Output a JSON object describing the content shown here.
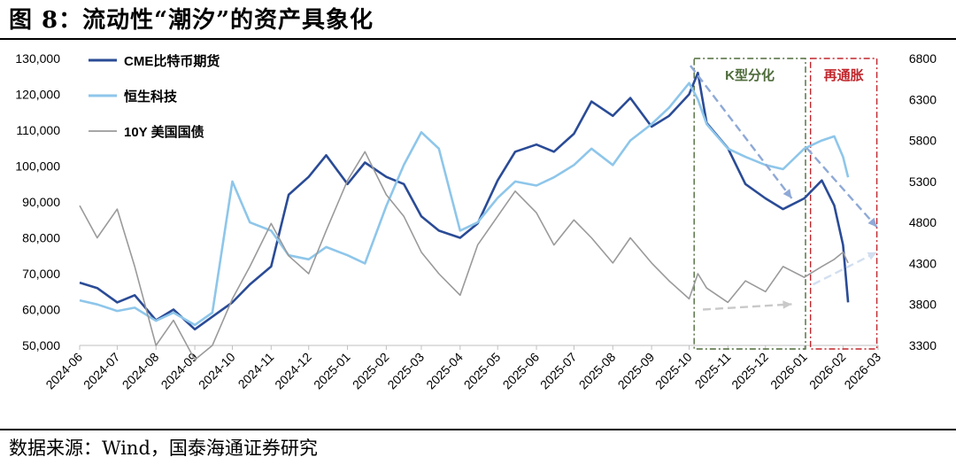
{
  "title": "图 8：流动性“潮汐”的资产具象化",
  "source": "数据来源：Wind，国泰海通证券研究",
  "colors": {
    "cme": "#2a4b96",
    "hsi": "#8ec6ea",
    "ust": "#9a9a9a",
    "k_box": "#4e6b3a",
    "reflation_box": "#c0262c"
  },
  "chart_data": {
    "type": "line",
    "x_ticks": [
      "2024-06",
      "2024-07",
      "2024-08",
      "2024-09",
      "2024-10",
      "2024-11",
      "2024-12",
      "2025-01",
      "2025-02",
      "2025-03",
      "2025-04",
      "2025-05",
      "2025-06",
      "2025-07",
      "2025-08",
      "2025-09",
      "2025-10",
      "2025-11",
      "2025-12",
      "2026-01",
      "2026-02",
      "2026-03"
    ],
    "left_axis": {
      "ticks": [
        "50,000",
        "60,000",
        "70,000",
        "80,000",
        "90,000",
        "100,000",
        "110,000",
        "120,000",
        "130,000"
      ],
      "range": [
        50000,
        130000
      ]
    },
    "right_axis": {
      "ticks": [
        "3300",
        "3800",
        "4300",
        "4800",
        "5300",
        "5800",
        "6300",
        "6800"
      ],
      "range": [
        3300,
        6800
      ]
    },
    "series": [
      {
        "name": "CME比特币期货",
        "axis": "left",
        "color": "#2a4b96",
        "points": [
          [
            "2024-06",
            67500
          ],
          [
            "2024-06-15",
            66000
          ],
          [
            "2024-07",
            62000
          ],
          [
            "2024-07-15",
            64000
          ],
          [
            "2024-08",
            57000
          ],
          [
            "2024-08-15",
            60000
          ],
          [
            "2024-09",
            54500
          ],
          [
            "2024-09-15",
            58000
          ],
          [
            "2024-10",
            62000
          ],
          [
            "2024-10-15",
            67000
          ],
          [
            "2024-11",
            72000
          ],
          [
            "2024-11-15",
            92000
          ],
          [
            "2024-12",
            97000
          ],
          [
            "2024-12-15",
            103000
          ],
          [
            "2025-01",
            95000
          ],
          [
            "2025-01-15",
            101000
          ],
          [
            "2025-02",
            97000
          ],
          [
            "2025-02-15",
            95000
          ],
          [
            "2025-03",
            86000
          ],
          [
            "2025-03-15",
            82000
          ],
          [
            "2025-04",
            80000
          ],
          [
            "2025-04-15",
            84000
          ],
          [
            "2025-05",
            96000
          ],
          [
            "2025-05-15",
            104000
          ],
          [
            "2025-06",
            106000
          ],
          [
            "2025-06-15",
            104000
          ],
          [
            "2025-07",
            109000
          ],
          [
            "2025-07-15",
            118000
          ],
          [
            "2025-08",
            114000
          ],
          [
            "2025-08-15",
            119000
          ],
          [
            "2025-09",
            111000
          ],
          [
            "2025-09-15",
            114000
          ],
          [
            "2025-10",
            120000
          ],
          [
            "2025-10-08",
            126000
          ],
          [
            "2025-10-15",
            112000
          ],
          [
            "2025-11",
            105000
          ],
          [
            "2025-11-15",
            95000
          ],
          [
            "2025-12",
            91000
          ],
          [
            "2025-12-15",
            88000
          ],
          [
            "2026-01",
            91000
          ],
          [
            "2026-01-15",
            96000
          ],
          [
            "2026-01-25",
            89000
          ],
          [
            "2026-02",
            78000
          ],
          [
            "2026-02-05",
            62000
          ]
        ]
      },
      {
        "name": "恒生科技",
        "axis": "right",
        "color": "#8ec6ea",
        "points": [
          [
            "2024-06",
            3850
          ],
          [
            "2024-06-15",
            3800
          ],
          [
            "2024-07",
            3720
          ],
          [
            "2024-07-15",
            3760
          ],
          [
            "2024-08",
            3600
          ],
          [
            "2024-08-15",
            3700
          ],
          [
            "2024-09",
            3550
          ],
          [
            "2024-09-15",
            3700
          ],
          [
            "2024-10",
            5300
          ],
          [
            "2024-10-15",
            4800
          ],
          [
            "2024-11",
            4700
          ],
          [
            "2024-11-15",
            4400
          ],
          [
            "2024-12",
            4350
          ],
          [
            "2024-12-15",
            4500
          ],
          [
            "2025-01",
            4400
          ],
          [
            "2025-01-15",
            4300
          ],
          [
            "2025-02",
            5000
          ],
          [
            "2025-02-15",
            5500
          ],
          [
            "2025-03",
            5900
          ],
          [
            "2025-03-15",
            5700
          ],
          [
            "2025-04",
            4700
          ],
          [
            "2025-04-15",
            4800
          ],
          [
            "2025-05",
            5100
          ],
          [
            "2025-05-15",
            5300
          ],
          [
            "2025-06",
            5250
          ],
          [
            "2025-06-15",
            5350
          ],
          [
            "2025-07",
            5500
          ],
          [
            "2025-07-15",
            5700
          ],
          [
            "2025-08",
            5500
          ],
          [
            "2025-08-15",
            5800
          ],
          [
            "2025-09",
            6000
          ],
          [
            "2025-09-15",
            6200
          ],
          [
            "2025-10",
            6500
          ],
          [
            "2025-10-08",
            6300
          ],
          [
            "2025-10-15",
            6000
          ],
          [
            "2025-11",
            5700
          ],
          [
            "2025-11-15",
            5600
          ],
          [
            "2025-12",
            5500
          ],
          [
            "2025-12-15",
            5450
          ],
          [
            "2026-01",
            5700
          ],
          [
            "2026-01-15",
            5800
          ],
          [
            "2026-01-25",
            5850
          ],
          [
            "2026-02",
            5600
          ],
          [
            "2026-02-05",
            5350
          ]
        ]
      },
      {
        "name": "10Y 美国国债",
        "axis": "left",
        "color": "#9a9a9a",
        "points": [
          [
            "2024-06",
            89000
          ],
          [
            "2024-06-15",
            80000
          ],
          [
            "2024-07",
            88000
          ],
          [
            "2024-07-15",
            72000
          ],
          [
            "2024-08",
            50000
          ],
          [
            "2024-08-15",
            57000
          ],
          [
            "2024-09",
            46000
          ],
          [
            "2024-09-15",
            50000
          ],
          [
            "2024-10",
            63000
          ],
          [
            "2024-10-15",
            72000
          ],
          [
            "2024-11",
            84000
          ],
          [
            "2024-11-15",
            75000
          ],
          [
            "2024-12",
            70000
          ],
          [
            "2024-12-15",
            82000
          ],
          [
            "2025-01",
            96000
          ],
          [
            "2025-01-15",
            104000
          ],
          [
            "2025-02",
            92000
          ],
          [
            "2025-02-15",
            86000
          ],
          [
            "2025-03",
            76000
          ],
          [
            "2025-03-15",
            70000
          ],
          [
            "2025-04",
            64000
          ],
          [
            "2025-04-15",
            78000
          ],
          [
            "2025-05",
            86000
          ],
          [
            "2025-05-15",
            93000
          ],
          [
            "2025-06",
            87000
          ],
          [
            "2025-06-15",
            78000
          ],
          [
            "2025-07",
            85000
          ],
          [
            "2025-07-15",
            80000
          ],
          [
            "2025-08",
            73000
          ],
          [
            "2025-08-15",
            80000
          ],
          [
            "2025-09",
            73000
          ],
          [
            "2025-09-15",
            68000
          ],
          [
            "2025-10",
            63000
          ],
          [
            "2025-10-08",
            70000
          ],
          [
            "2025-10-15",
            66000
          ],
          [
            "2025-11",
            62000
          ],
          [
            "2025-11-15",
            68000
          ],
          [
            "2025-12",
            65000
          ],
          [
            "2025-12-15",
            72000
          ],
          [
            "2026-01",
            69000
          ],
          [
            "2026-01-15",
            72000
          ],
          [
            "2026-01-25",
            74000
          ],
          [
            "2026-02",
            76000
          ],
          [
            "2026-02-05",
            73000
          ]
        ]
      }
    ],
    "legend_position": "top-left",
    "grid": false,
    "annotations": [
      {
        "label": "K型分化",
        "color": "#4e6b3a",
        "x_range": [
          "2025-10-05",
          "2026-01-02"
        ]
      },
      {
        "label": "再通胀",
        "color": "#c0262c",
        "x_range": [
          "2026-01-06",
          "2026-02-28"
        ]
      }
    ],
    "trend_arrows": [
      {
        "color": "#8fa9d6",
        "from": [
          "2025-10-02",
          128000
        ],
        "to": [
          "2025-12-22",
          91000
        ]
      },
      {
        "color": "#c9c9c9",
        "from": [
          "2025-10-12",
          60000
        ],
        "to": [
          "2025-12-22",
          61500
        ]
      },
      {
        "color": "#8fa9d6",
        "from": [
          "2026-01-03",
          105000
        ],
        "to": [
          "2026-02-28",
          83000
        ]
      },
      {
        "color": "#d2dff0",
        "from": [
          "2026-01-08",
          67000
        ],
        "to": [
          "2026-02-28",
          76000
        ]
      }
    ]
  }
}
